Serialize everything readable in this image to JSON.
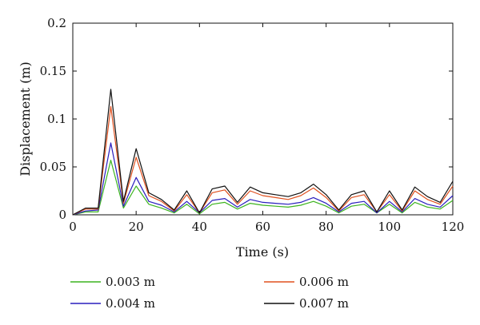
{
  "chart_data": {
    "type": "line",
    "xlabel": "Time (s)",
    "ylabel": "Displacement (m)",
    "xlim": [
      0,
      120
    ],
    "ylim": [
      0,
      0.2
    ],
    "xticks": [
      0,
      20,
      40,
      60,
      80,
      100,
      120
    ],
    "yticks": [
      0,
      0.05,
      0.1,
      0.15,
      0.2
    ],
    "xtick_labels": [
      "0",
      "20",
      "40",
      "60",
      "80",
      "100",
      "120"
    ],
    "ytick_labels": [
      "0",
      "0.05",
      "0.1",
      "0.15",
      "0.2"
    ],
    "grid": false,
    "legend_position": "bottom",
    "x": [
      0,
      4,
      8,
      12,
      16,
      20,
      24,
      28,
      32,
      36,
      40,
      44,
      48,
      52,
      56,
      60,
      64,
      68,
      72,
      76,
      80,
      84,
      88,
      92,
      96,
      100,
      104,
      108,
      112,
      116,
      120
    ],
    "series": [
      {
        "name": "0.003 m",
        "color": "#3cb41e",
        "values": [
          0,
          0.003,
          0.003,
          0.057,
          0.007,
          0.03,
          0.011,
          0.007,
          0.002,
          0.011,
          0.001,
          0.011,
          0.013,
          0.006,
          0.012,
          0.01,
          0.009,
          0.008,
          0.01,
          0.014,
          0.009,
          0.002,
          0.009,
          0.011,
          0.002,
          0.011,
          0.002,
          0.013,
          0.008,
          0.006,
          0.015
        ]
      },
      {
        "name": "0.004 m",
        "color": "#2a1ebe",
        "values": [
          0,
          0.004,
          0.005,
          0.075,
          0.009,
          0.039,
          0.014,
          0.01,
          0.003,
          0.014,
          0.002,
          0.015,
          0.017,
          0.008,
          0.016,
          0.013,
          0.012,
          0.011,
          0.013,
          0.018,
          0.012,
          0.003,
          0.012,
          0.014,
          0.002,
          0.014,
          0.003,
          0.017,
          0.011,
          0.008,
          0.02
        ]
      },
      {
        "name": "0.006 m",
        "color": "#e0501e",
        "values": [
          0,
          0.006,
          0.006,
          0.113,
          0.012,
          0.06,
          0.02,
          0.014,
          0.004,
          0.021,
          0.002,
          0.023,
          0.026,
          0.011,
          0.025,
          0.02,
          0.018,
          0.016,
          0.02,
          0.028,
          0.018,
          0.004,
          0.018,
          0.021,
          0.003,
          0.021,
          0.004,
          0.025,
          0.016,
          0.011,
          0.03
        ]
      },
      {
        "name": "0.007 m",
        "color": "#111111",
        "values": [
          0,
          0.007,
          0.007,
          0.131,
          0.014,
          0.069,
          0.023,
          0.016,
          0.005,
          0.025,
          0.002,
          0.027,
          0.03,
          0.013,
          0.029,
          0.023,
          0.021,
          0.019,
          0.023,
          0.032,
          0.021,
          0.005,
          0.021,
          0.025,
          0.003,
          0.025,
          0.005,
          0.029,
          0.019,
          0.013,
          0.035
        ]
      }
    ]
  }
}
